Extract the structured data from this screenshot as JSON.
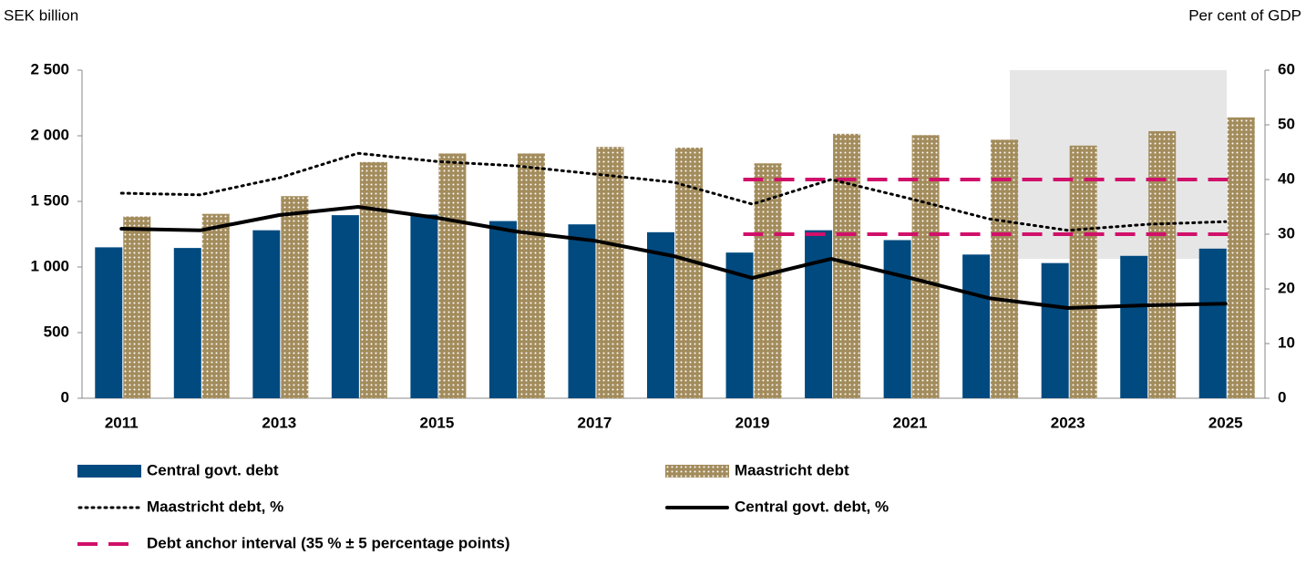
{
  "chart_data": {
    "type": "bar",
    "y_label": "SEK billion",
    "y2_label": "Per cent of GDP",
    "categories": [
      "2011",
      null,
      "2013",
      null,
      "2015",
      null,
      "2017",
      null,
      "2019",
      null,
      "2021",
      null,
      "2023",
      null,
      "2025"
    ],
    "ylim": [
      0,
      2500
    ],
    "yticks": [
      0,
      500,
      {
        "value": 1000,
        "label": "1 000"
      },
      {
        "value": 1500,
        "label": "1 500"
      },
      {
        "value": 2000,
        "label": "2 000"
      },
      {
        "value": 2500,
        "label": "2 500"
      }
    ],
    "y2lim": [
      0,
      60
    ],
    "y2ticks": [
      0,
      10,
      20,
      30,
      40,
      50,
      60
    ],
    "series": [
      {
        "name": "Central govt. debt",
        "color": "#004a80",
        "style": "bar",
        "values": [
          1150,
          1145,
          1280,
          1395,
          1400,
          1350,
          1325,
          1265,
          1110,
          1280,
          1205,
          1095,
          1030,
          1085,
          1140
        ]
      },
      {
        "name": "Maastricht debt",
        "color": "#a38c5c",
        "style": "dotted-bar",
        "values": [
          1385,
          1405,
          1540,
          1800,
          1865,
          1865,
          1915,
          1910,
          1790,
          2015,
          2005,
          1970,
          1925,
          2035,
          2140
        ]
      },
      {
        "name": "Maastricht debt, %",
        "color": "#000000",
        "style": "dotted",
        "axis": "y2",
        "values": [
          37.5,
          37.2,
          40.3,
          44.8,
          43.3,
          42.5,
          41,
          39.5,
          35.5,
          40,
          36.5,
          32.8,
          30.7,
          31.8,
          32.3
        ]
      },
      {
        "name": "Central govt. debt, %",
        "color": "#000000",
        "style": "solid",
        "axis": "y2",
        "values": [
          31,
          30.7,
          33.5,
          35,
          33,
          30.5,
          28.8,
          26,
          22,
          25.5,
          22,
          18.3,
          16.5,
          17,
          17.3
        ]
      }
    ],
    "anchor": {
      "name": "Debt anchor interval (35 % ± 5 percentage points)",
      "color": "#d0106a",
      "axis": "y2",
      "values": [
        40,
        30
      ],
      "from": "2019"
    }
  }
}
